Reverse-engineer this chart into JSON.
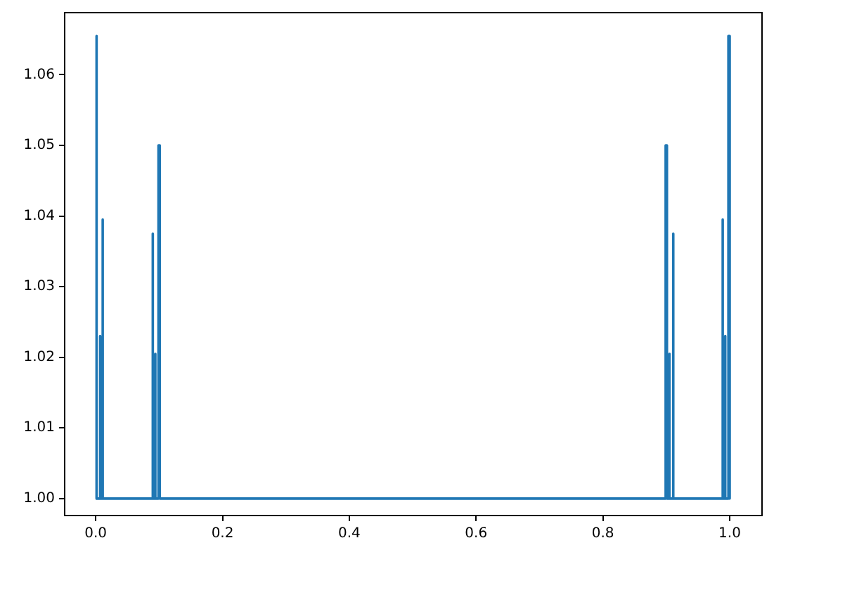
{
  "chart_data": {
    "type": "line",
    "color": "#1f77b4",
    "x": [
      0,
      0,
      0.002,
      0.002,
      0.007,
      0.007,
      0.007,
      0.011,
      0.011,
      0.011,
      0.09,
      0.09,
      0.09,
      0.094,
      0.094,
      0.094,
      0.099,
      0.099,
      0.101,
      0.101,
      0.899,
      0.899,
      0.901,
      0.901,
      0.905,
      0.905,
      0.905,
      0.911,
      0.911,
      0.911,
      0.989,
      0.989,
      0.989,
      0.993,
      0.993,
      0.993,
      0.998,
      0.998,
      1,
      1
    ],
    "values": [
      1,
      1.0655,
      1.0655,
      1,
      1,
      1.023,
      1,
      1,
      1.0395,
      1,
      1,
      1.0375,
      1,
      1,
      1.0205,
      1,
      1,
      1.05,
      1.05,
      1,
      1,
      1.05,
      1.05,
      1,
      1,
      1.0205,
      1,
      1,
      1.0375,
      1,
      1,
      1.0395,
      1,
      1,
      1.023,
      1,
      1,
      1.0655,
      1.0655,
      1
    ],
    "xlim": [
      -0.049,
      1.051
    ],
    "xticks": [
      {
        "value": 0,
        "label": "0.0"
      },
      {
        "value": 0.2,
        "label": "0.2"
      },
      {
        "value": 0.4,
        "label": "0.4"
      },
      {
        "value": 0.6,
        "label": "0.6"
      },
      {
        "value": 0.8,
        "label": "0.8"
      },
      {
        "value": 1,
        "label": "1.0"
      }
    ],
    "ylim": [
      0.9976,
      1.0688
    ],
    "yticks": [
      {
        "value": 1,
        "label": "1.00"
      },
      {
        "value": 1.01,
        "label": "1.01"
      },
      {
        "value": 1.02,
        "label": "1.02"
      },
      {
        "value": 1.03,
        "label": "1.03"
      },
      {
        "value": 1.04,
        "label": "1.04"
      },
      {
        "value": 1.05,
        "label": "1.05"
      },
      {
        "value": 1.06,
        "label": "1.06"
      }
    ],
    "grid": false,
    "legend": false
  }
}
